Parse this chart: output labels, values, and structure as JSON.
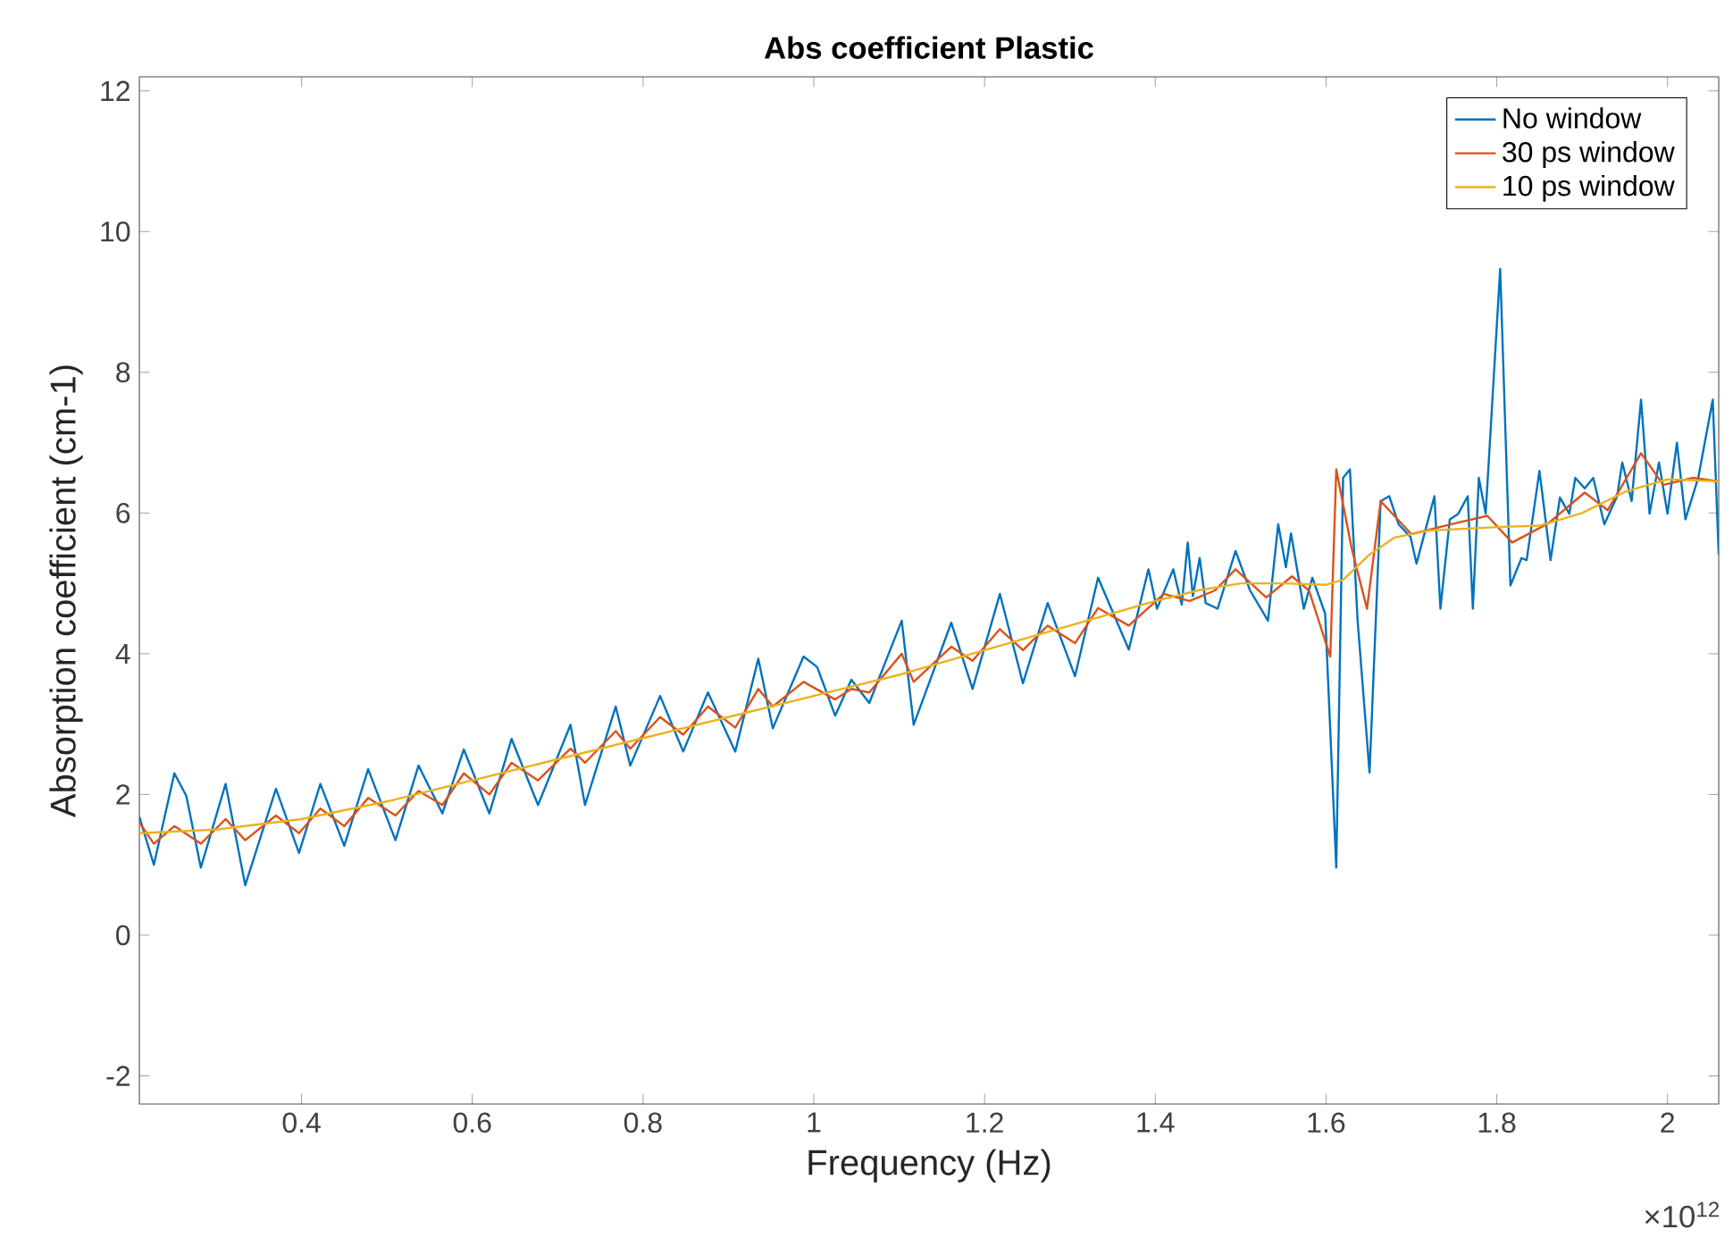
{
  "chart_data": {
    "type": "line",
    "title": "Abs coefficient Plastic",
    "xlabel": "Frequency (Hz)",
    "ylabel": "Absorption coefficient (cm-1)",
    "annotations": [
      "×10$^{12}$"
    ],
    "xlim": [
      0.21,
      2.06
    ],
    "ylim": [
      -2.4,
      12.2
    ],
    "xticks": [
      0.4,
      0.6,
      0.8,
      1,
      1.2,
      1.4,
      1.6,
      1.8,
      2
    ],
    "yticks": [
      -2,
      0,
      2,
      4,
      6,
      8,
      10,
      12
    ],
    "grid": false,
    "legend": "top right",
    "marker": "none",
    "line_style": "solid",
    "series": [
      {
        "name": "No window",
        "color": "#0072bd",
        "x": [
          0.21,
          0.227,
          0.251,
          0.265,
          0.282,
          0.311,
          0.334,
          0.37,
          0.397,
          0.422,
          0.45,
          0.478,
          0.51,
          0.537,
          0.565,
          0.59,
          0.62,
          0.646,
          0.677,
          0.715,
          0.732,
          0.768,
          0.785,
          0.82,
          0.847,
          0.876,
          0.908,
          0.935,
          0.952,
          0.988,
          1.004,
          1.025,
          1.044,
          1.065,
          1.103,
          1.117,
          1.161,
          1.186,
          1.218,
          1.245,
          1.274,
          1.306,
          1.333,
          1.369,
          1.392,
          1.402,
          1.421,
          1.431,
          1.438,
          1.444,
          1.452,
          1.459,
          1.473,
          1.494,
          1.511,
          1.532,
          1.544,
          1.553,
          1.559,
          1.574,
          1.584,
          1.599,
          1.612,
          1.62,
          1.628,
          1.637,
          1.651,
          1.664,
          1.674,
          1.685,
          1.699,
          1.706,
          1.716,
          1.727,
          1.734,
          1.745,
          1.755,
          1.766,
          1.772,
          1.779,
          1.787,
          1.804,
          1.816,
          1.829,
          1.835,
          1.85,
          1.863,
          1.874,
          1.885,
          1.892,
          1.903,
          1.913,
          1.926,
          1.941,
          1.947,
          1.958,
          1.969,
          1.979,
          1.99,
          2.0,
          2.011,
          2.021,
          2.036,
          2.053,
          2.06
        ],
        "values": [
          1.68,
          1.0,
          2.3,
          1.98,
          0.96,
          2.15,
          0.71,
          2.08,
          1.17,
          2.15,
          1.27,
          2.36,
          1.35,
          2.41,
          1.73,
          2.64,
          1.73,
          2.79,
          1.85,
          2.99,
          1.85,
          3.25,
          2.41,
          3.4,
          2.61,
          3.45,
          2.61,
          3.93,
          2.94,
          3.96,
          3.81,
          3.12,
          3.63,
          3.3,
          4.47,
          2.99,
          4.44,
          3.5,
          4.85,
          3.58,
          4.72,
          3.68,
          5.08,
          4.06,
          5.2,
          4.64,
          5.2,
          4.7,
          5.58,
          4.82,
          5.36,
          4.72,
          4.64,
          5.46,
          4.9,
          4.47,
          5.84,
          5.23,
          5.71,
          4.64,
          5.08,
          4.57,
          0.96,
          6.5,
          6.62,
          4.47,
          2.31,
          6.17,
          6.24,
          5.84,
          5.66,
          5.28,
          5.74,
          6.24,
          4.64,
          5.91,
          5.99,
          6.24,
          4.64,
          6.5,
          5.99,
          9.47,
          4.97,
          5.36,
          5.33,
          6.6,
          5.33,
          6.22,
          5.99,
          6.5,
          6.35,
          6.5,
          5.84,
          6.24,
          6.72,
          6.17,
          7.61,
          5.99,
          6.72,
          5.99,
          7.0,
          5.91,
          6.5,
          7.61,
          5.41
        ]
      },
      {
        "name": "30 ps window",
        "color": "#d95319",
        "x": [
          0.21,
          0.227,
          0.251,
          0.282,
          0.311,
          0.334,
          0.37,
          0.397,
          0.422,
          0.45,
          0.478,
          0.51,
          0.537,
          0.565,
          0.59,
          0.62,
          0.646,
          0.677,
          0.715,
          0.732,
          0.768,
          0.785,
          0.82,
          0.847,
          0.876,
          0.908,
          0.935,
          0.952,
          0.988,
          1.025,
          1.044,
          1.065,
          1.103,
          1.117,
          1.161,
          1.186,
          1.218,
          1.245,
          1.274,
          1.306,
          1.333,
          1.369,
          1.41,
          1.44,
          1.47,
          1.494,
          1.53,
          1.56,
          1.58,
          1.605,
          1.612,
          1.63,
          1.648,
          1.664,
          1.7,
          1.75,
          1.789,
          1.818,
          1.86,
          1.903,
          1.93,
          1.969,
          1.995,
          2.03,
          2.06
        ],
        "values": [
          1.6,
          1.3,
          1.55,
          1.3,
          1.65,
          1.35,
          1.7,
          1.45,
          1.8,
          1.55,
          1.95,
          1.7,
          2.05,
          1.85,
          2.3,
          2.0,
          2.45,
          2.2,
          2.65,
          2.45,
          2.9,
          2.65,
          3.1,
          2.85,
          3.25,
          2.95,
          3.5,
          3.25,
          3.6,
          3.35,
          3.5,
          3.45,
          4.0,
          3.6,
          4.1,
          3.9,
          4.35,
          4.05,
          4.4,
          4.15,
          4.65,
          4.4,
          4.85,
          4.75,
          4.9,
          5.2,
          4.8,
          5.1,
          4.9,
          3.96,
          6.62,
          5.5,
          4.64,
          6.17,
          5.7,
          5.85,
          5.96,
          5.58,
          5.85,
          6.29,
          6.04,
          6.85,
          6.4,
          6.5,
          6.45
        ]
      },
      {
        "name": "10 ps window",
        "color": "#edb120",
        "x": [
          0.21,
          0.3,
          0.4,
          0.5,
          0.6,
          0.7,
          0.8,
          0.9,
          1.0,
          1.1,
          1.2,
          1.3,
          1.4,
          1.45,
          1.5,
          1.55,
          1.6,
          1.62,
          1.65,
          1.68,
          1.72,
          1.8,
          1.85,
          1.9,
          1.95,
          2.0,
          2.06
        ],
        "values": [
          1.45,
          1.5,
          1.65,
          1.9,
          2.2,
          2.5,
          2.8,
          3.1,
          3.4,
          3.7,
          4.05,
          4.4,
          4.75,
          4.9,
          5.0,
          5.0,
          4.98,
          5.05,
          5.4,
          5.65,
          5.75,
          5.8,
          5.82,
          6.0,
          6.3,
          6.48,
          6.45
        ]
      }
    ]
  }
}
